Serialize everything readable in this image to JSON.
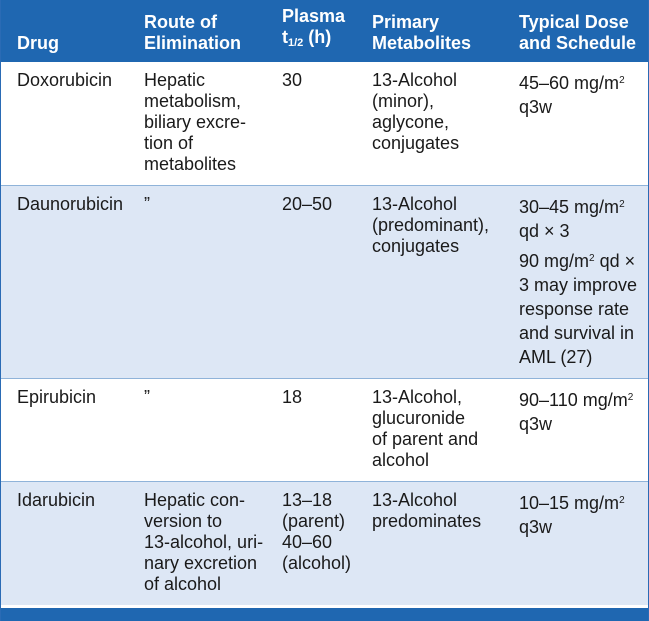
{
  "headers": {
    "drug": [
      "Drug"
    ],
    "route": [
      "Route of",
      "Elimination"
    ],
    "plasma": [
      "Plasma",
      "t",
      "1/2",
      " (h)"
    ],
    "metabolites": [
      "Primary",
      "Metabolites"
    ],
    "dose": [
      "Typical Dose",
      "and Schedule"
    ]
  },
  "rows": [
    {
      "drug": "Doxorubicin",
      "route": [
        "Hepatic",
        "metabolism,",
        "biliary excre-",
        "tion of",
        "metabolites"
      ],
      "plasma": [
        "30"
      ],
      "metabolites": [
        "13-Alcohol",
        "(minor),",
        "aglycone,",
        "conjugates"
      ],
      "dose_lines": [
        [
          "45–60 mg/m",
          "2",
          ""
        ],
        [
          "q3w",
          "",
          ""
        ]
      ]
    },
    {
      "drug": "Daunorubicin",
      "route": [
        "”"
      ],
      "plasma": [
        "20–50"
      ],
      "metabolites": [
        "13-Alcohol",
        "(predominant),",
        "conjugates"
      ],
      "dose_lines": [
        [
          "30–45 mg/m",
          "2",
          ""
        ],
        [
          "qd × 3",
          "",
          ""
        ]
      ],
      "dose_lines_2": [
        [
          "90 mg/m",
          "2",
          " qd ×"
        ],
        [
          "3 may improve",
          "",
          ""
        ],
        [
          "response rate",
          "",
          ""
        ],
        [
          "and survival in",
          "",
          ""
        ],
        [
          "AML (27)",
          "",
          ""
        ]
      ]
    },
    {
      "drug": "Epirubicin",
      "route": [
        "”"
      ],
      "plasma": [
        "18"
      ],
      "metabolites": [
        "13-Alcohol,",
        "glucuronide",
        "of parent and",
        "alcohol"
      ],
      "dose_lines": [
        [
          "90–110 mg/m",
          "2",
          ""
        ],
        [
          "q3w",
          "",
          ""
        ]
      ]
    },
    {
      "drug": "Idarubicin",
      "route": [
        "Hepatic con-",
        "version to",
        "13-alcohol, uri-",
        "nary excretion",
        "of alcohol"
      ],
      "plasma": [
        "13–18",
        "(parent)",
        "40–60",
        "(alcohol)"
      ],
      "metabolites": [
        "13-Alcohol",
        "predominates"
      ],
      "dose_lines": [
        [
          "10–15 mg/m",
          "2",
          ""
        ],
        [
          "q3w",
          "",
          ""
        ]
      ]
    }
  ],
  "colors": {
    "header_bg": "#1f67b1",
    "header_text": "#ffffff",
    "row_tint": "#dde7f5",
    "row_white": "#ffffff",
    "rule": "#8fb3d9"
  }
}
